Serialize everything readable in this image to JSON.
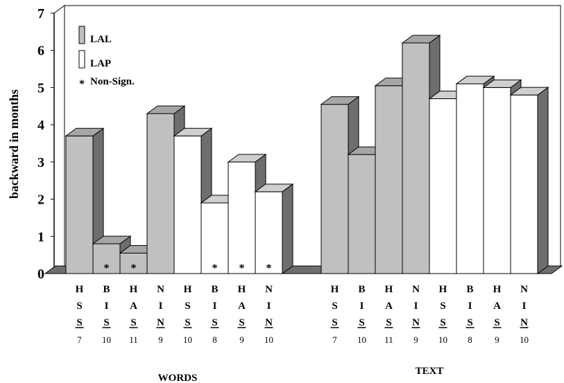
{
  "chart_data": {
    "type": "bar",
    "title": "",
    "ylabel": "backward in months",
    "ylim": [
      0,
      7
    ],
    "yticks": [
      "0",
      "1",
      "2",
      "3",
      "4",
      "5",
      "6",
      "7"
    ],
    "grid": false,
    "legend": {
      "placement": "top-left",
      "entries": [
        {
          "label": "LAL",
          "color": "#c0c0c0"
        },
        {
          "label": "LAP",
          "color": "#ffffff"
        },
        {
          "label": "Non-Sign.",
          "marker": "*"
        }
      ]
    },
    "groups": [
      {
        "name": "WORDS",
        "bars": [
          {
            "series": "LAL",
            "value": 3.7,
            "letters": [
              "H",
              "S",
              "S"
            ],
            "n": "7",
            "nonsign": false
          },
          {
            "series": "LAL",
            "value": 0.8,
            "letters": [
              "B",
              "I",
              "S"
            ],
            "n": "10",
            "nonsign": true
          },
          {
            "series": "LAL",
            "value": 0.55,
            "letters": [
              "H",
              "A",
              "S"
            ],
            "n": "11",
            "nonsign": true
          },
          {
            "series": "LAL",
            "value": 4.3,
            "letters": [
              "N",
              "I",
              "N"
            ],
            "n": "9",
            "nonsign": false
          },
          {
            "series": "LAP",
            "value": 3.7,
            "letters": [
              "H",
              "S",
              "S"
            ],
            "n": "10",
            "nonsign": false
          },
          {
            "series": "LAP",
            "value": 1.9,
            "letters": [
              "B",
              "I",
              "S"
            ],
            "n": "8",
            "nonsign": true
          },
          {
            "series": "LAP",
            "value": 3.0,
            "letters": [
              "H",
              "A",
              "S"
            ],
            "n": "9",
            "nonsign": true
          },
          {
            "series": "LAP",
            "value": 2.2,
            "letters": [
              "N",
              "I",
              "N"
            ],
            "n": "10",
            "nonsign": true
          }
        ]
      },
      {
        "name": "TEXT",
        "bars": [
          {
            "series": "LAL",
            "value": 4.55,
            "letters": [
              "H",
              "S",
              "S"
            ],
            "n": "7",
            "nonsign": false
          },
          {
            "series": "LAL",
            "value": 3.2,
            "letters": [
              "B",
              "I",
              "S"
            ],
            "n": "10",
            "nonsign": false
          },
          {
            "series": "LAL",
            "value": 5.05,
            "letters": [
              "H",
              "A",
              "S"
            ],
            "n": "11",
            "nonsign": false
          },
          {
            "series": "LAL",
            "value": 6.2,
            "letters": [
              "N",
              "I",
              "N"
            ],
            "n": "9",
            "nonsign": false
          },
          {
            "series": "LAP",
            "value": 4.7,
            "letters": [
              "H",
              "S",
              "S"
            ],
            "n": "10",
            "nonsign": false
          },
          {
            "series": "LAP",
            "value": 5.1,
            "letters": [
              "B",
              "I",
              "S"
            ],
            "n": "8",
            "nonsign": false
          },
          {
            "series": "LAP",
            "value": 5.0,
            "letters": [
              "H",
              "A",
              "S"
            ],
            "n": "9",
            "nonsign": false
          },
          {
            "series": "LAP",
            "value": 4.8,
            "letters": [
              "N",
              "I",
              "N"
            ],
            "n": "10",
            "nonsign": false
          }
        ]
      }
    ]
  },
  "colors": {
    "lal_front": "#c0c0c0",
    "lap_front": "#ffffff",
    "side": "#6e6e6e",
    "top_lal": "#a6a6a6",
    "top_lap": "#cfcfcf"
  }
}
